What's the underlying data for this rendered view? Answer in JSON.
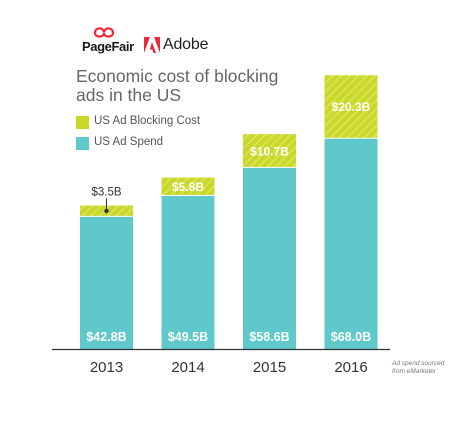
{
  "logos": {
    "pagefair_page": "Page",
    "pagefair_fair": "Fair",
    "adobe": "Adobe",
    "pagefair_mark_color": "#e8293a",
    "adobe_mark_color": "#e8293a"
  },
  "colors": {
    "ad_spend": "#5ec8cb",
    "blocking_cost": "#c8d72a",
    "baseline": "#333333"
  },
  "note": "Ad spend sourced from eMarketer",
  "chart_data": {
    "type": "bar",
    "stacked": true,
    "title": "Economic cost of blocking ads in the US",
    "categories": [
      "2013",
      "2014",
      "2015",
      "2016"
    ],
    "series": [
      {
        "name": "US Ad Spend",
        "values": [
          42.8,
          49.5,
          58.6,
          68.0
        ],
        "labels": [
          "$42.8B",
          "$49.5B",
          "$58.6B",
          "$68.0B"
        ]
      },
      {
        "name": "US Ad Blocking Cost",
        "values": [
          3.5,
          5.8,
          10.7,
          20.3
        ],
        "labels": [
          "$3.5B",
          "$5.8B",
          "$10.7B",
          "$20.3B"
        ]
      }
    ],
    "legend": [
      "US Ad Blocking Cost",
      "US Ad Spend"
    ],
    "legend_position": "top-left",
    "xlabel": "",
    "ylabel": "",
    "ylim": [
      0,
      90
    ],
    "grid": false
  }
}
